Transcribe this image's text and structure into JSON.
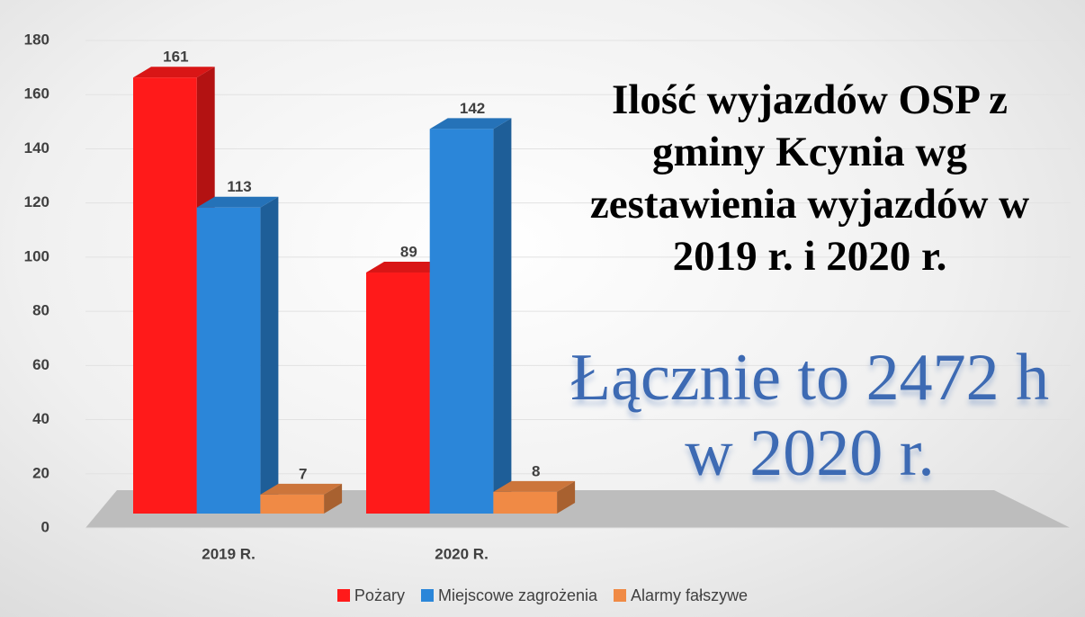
{
  "chart_data": {
    "type": "bar3d",
    "title": "Ilość wyjazdów OSP z gminy Kcynia wg zestawienia wyjazdów w 2019 r. i 2020 r.",
    "annotation": "Łącznie to  2472 h w 2020 r.",
    "categories": [
      "2019 R.",
      "2020 R."
    ],
    "series": [
      {
        "name": "Pożary",
        "color": "#ff1a1a",
        "values": [
          161,
          89
        ]
      },
      {
        "name": "Miejscowe zagrożenia",
        "color": "#2b86d9",
        "values": [
          113,
          142
        ]
      },
      {
        "name": "Alarmy fałszywe",
        "color": "#f08a45",
        "values": [
          7,
          8
        ]
      }
    ],
    "ylim": [
      0,
      180
    ],
    "yticks": [
      0,
      20,
      40,
      60,
      80,
      100,
      120,
      140,
      160,
      180
    ],
    "grid": true,
    "legend": "bottom"
  }
}
